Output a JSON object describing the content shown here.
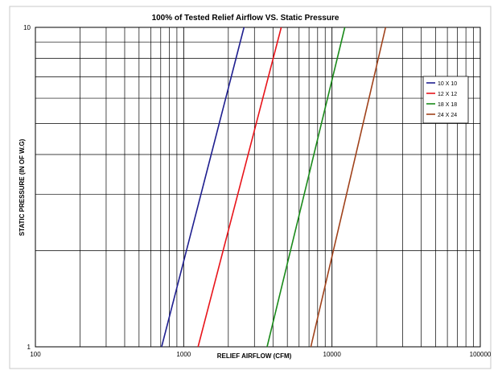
{
  "chart_data": {
    "type": "line",
    "title": "100% of Tested Relief Airflow VS. Static Pressure",
    "xlabel": "RELIEF  AIRFLOW  (CFM)",
    "ylabel": "STATIC  PRESSURE  (IN OF W.G)",
    "x_scale": "log",
    "y_scale": "log",
    "xlim": [
      100,
      100000
    ],
    "ylim": [
      1,
      10
    ],
    "x_tick_labels": [
      "100",
      "1000",
      "10000",
      "100000"
    ],
    "y_tick_labels": [
      "1",
      "10"
    ],
    "grid": true,
    "legend_position": "right",
    "series": [
      {
        "name": "10 X 10",
        "color": "#1f1f8f",
        "x": [
          710,
          2550
        ],
        "y": [
          1,
          10
        ]
      },
      {
        "name": "12 X 12",
        "color": "#e8141a",
        "x": [
          1250,
          4550
        ],
        "y": [
          1,
          10
        ]
      },
      {
        "name": "18 X 18",
        "color": "#1a8a1a",
        "x": [
          3650,
          12200
        ],
        "y": [
          1,
          10
        ]
      },
      {
        "name": "24 X 24",
        "color": "#a0421b",
        "x": [
          7200,
          23000
        ],
        "y": [
          1,
          10
        ]
      }
    ]
  }
}
